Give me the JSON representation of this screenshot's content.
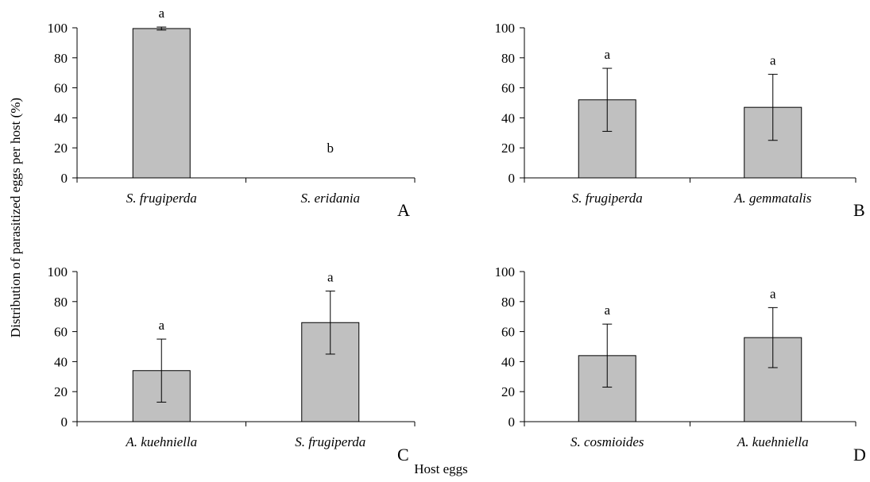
{
  "figure": {
    "ylabel": "Distribution of parasitized eggs per host (%)",
    "xlabel": "Host eggs"
  },
  "colors": {
    "bar_fill": "#c0c0c0",
    "stroke": "#000000"
  },
  "chart_data": [
    {
      "type": "bar",
      "panel": "A",
      "categories": [
        "S. frugiperda",
        "S. eridania"
      ],
      "values": [
        99.5,
        0
      ],
      "errors": [
        1,
        0
      ],
      "significance": [
        "a",
        "b"
      ],
      "ylim": [
        0,
        100
      ],
      "yticks": [
        0,
        20,
        40,
        60,
        80,
        100
      ]
    },
    {
      "type": "bar",
      "panel": "B",
      "categories": [
        "S. frugiperda",
        "A. gemmatalis"
      ],
      "values": [
        52,
        47
      ],
      "errors": [
        21,
        22
      ],
      "significance": [
        "a",
        "a"
      ],
      "ylim": [
        0,
        100
      ],
      "yticks": [
        0,
        20,
        40,
        60,
        80,
        100
      ]
    },
    {
      "type": "bar",
      "panel": "C",
      "categories": [
        "A. kuehniella",
        "S. frugiperda"
      ],
      "values": [
        34,
        66
      ],
      "errors": [
        21,
        21
      ],
      "significance": [
        "a",
        "a"
      ],
      "ylim": [
        0,
        100
      ],
      "yticks": [
        0,
        20,
        40,
        60,
        80,
        100
      ]
    },
    {
      "type": "bar",
      "panel": "D",
      "categories": [
        "S. cosmioides",
        "A. kuehniella"
      ],
      "values": [
        44,
        56
      ],
      "errors": [
        21,
        20
      ],
      "significance": [
        "a",
        "a"
      ],
      "ylim": [
        0,
        100
      ],
      "yticks": [
        0,
        20,
        40,
        60,
        80,
        100
      ]
    }
  ]
}
